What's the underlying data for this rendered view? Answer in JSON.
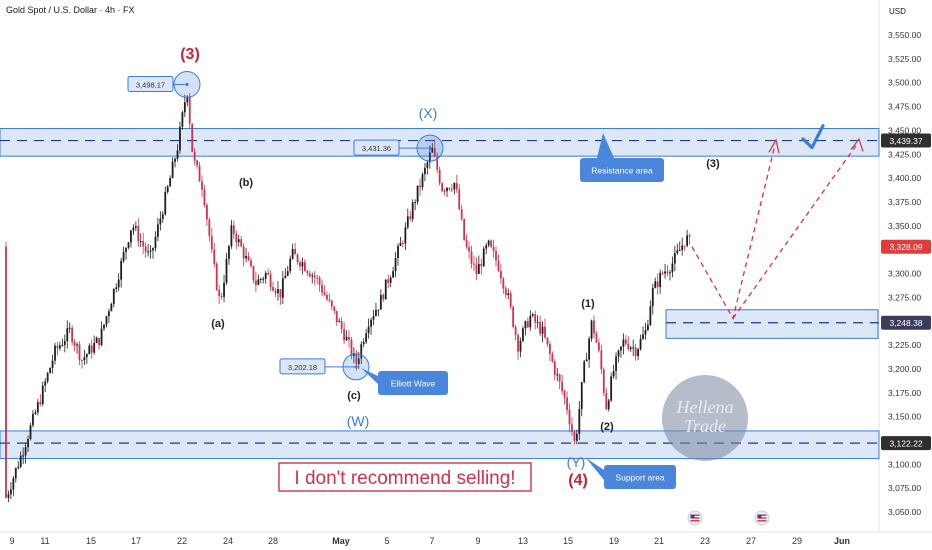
{
  "header": {
    "symbol": "Gold Spot / U.S. Dollar · 4h · FX",
    "currency": "USD"
  },
  "chart_data": {
    "type": "candlestick",
    "ylim": [
      3040,
      3560
    ],
    "y_ticks": [
      "3,550.00",
      "3,525.00",
      "3,500.00",
      "3,475.00",
      "3,450.00",
      "3,425.00",
      "3,400.00",
      "3,375.00",
      "3,350.00",
      "3,325.00",
      "3,300.00",
      "3,275.00",
      "3,250.00",
      "3,225.00",
      "3,200.00",
      "3,175.00",
      "3,150.00",
      "3,125.00",
      "3,100.00",
      "3,075.00",
      "3,050.00"
    ],
    "x_ticks": [
      "9",
      "11",
      "15",
      "17",
      "22",
      "24",
      "28",
      "May",
      "5",
      "7",
      "9",
      "13",
      "15",
      "19",
      "21",
      "23",
      "27",
      "29",
      "Jun"
    ],
    "price_badges": [
      {
        "value": 3439.37,
        "label": "3,439.37",
        "color": "#2f2f2f"
      },
      {
        "value": 3328.09,
        "label": "3,328.09",
        "color": "#e23b3b"
      },
      {
        "value": 3248.38,
        "label": "3,248.38",
        "color": "#3b3b5c"
      },
      {
        "value": 3122.22,
        "label": "3,122.22",
        "color": "#2f2f2f"
      }
    ],
    "zones": [
      {
        "name": "Resistance area",
        "from": 3423,
        "to": 3452
      },
      {
        "name": "Support area",
        "from": 3106,
        "to": 3135
      },
      {
        "name": "target box",
        "from": 3232,
        "to": 3262
      }
    ],
    "point_markers": [
      {
        "label": "3,498.17",
        "value": 3498.17
      },
      {
        "label": "3,431.36",
        "value": 3431.36
      },
      {
        "label": "3,202.18",
        "value": 3202.18
      }
    ],
    "wave_labels": [
      {
        "text": "(3)",
        "color": "#c0283a"
      },
      {
        "text": "(b)",
        "color": "#222222"
      },
      {
        "text": "(a)",
        "color": "#222222"
      },
      {
        "text": "(X)",
        "color": "#3d7bd9"
      },
      {
        "text": "(c)",
        "color": "#222222"
      },
      {
        "text": "(W)",
        "color": "#3d7bd9"
      },
      {
        "text": "(1)",
        "color": "#222222"
      },
      {
        "text": "(2)",
        "color": "#222222"
      },
      {
        "text": "(3)",
        "color": "#222222"
      },
      {
        "text": "(Y)",
        "color": "#3d7bd9"
      },
      {
        "text": "(4)",
        "color": "#c0283a"
      }
    ],
    "callouts": [
      "Resistance area",
      "Elliott Wave",
      "Support area"
    ],
    "banner": "I don't recommend selling!",
    "watermark": [
      "Hellena",
      "Trade"
    ],
    "colors": {
      "up": "#1e1e1e",
      "down": "#d0324a",
      "zone": "#3d7bd9",
      "projection": "#d8323f"
    }
  }
}
